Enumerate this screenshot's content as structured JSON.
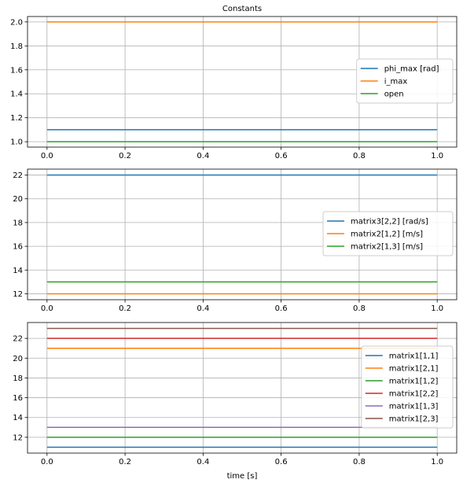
{
  "figure": {
    "title": "Constants",
    "xlabel": "time [s]"
  },
  "chart_data": [
    {
      "type": "line",
      "title": "Constants",
      "xlabel": "",
      "ylabel": "",
      "xlim": [
        -0.05,
        1.05
      ],
      "ylim": [
        0.955,
        2.045
      ],
      "xticks": [
        0.0,
        0.2,
        0.4,
        0.6,
        0.8,
        1.0
      ],
      "xtick_labels": [
        "0.0",
        "0.2",
        "0.4",
        "0.6",
        "0.8",
        "1.0"
      ],
      "yticks": [
        1.0,
        1.2,
        1.4,
        1.6,
        1.8,
        2.0
      ],
      "ytick_labels": [
        "1.0",
        "1.2",
        "1.4",
        "1.6",
        "1.8",
        "2.0"
      ],
      "grid": true,
      "legend_position": "center-right",
      "series": [
        {
          "name": "phi_max [rad]",
          "color": "#1f77b4",
          "x": [
            0.0,
            1.0
          ],
          "y": [
            1.1,
            1.1
          ]
        },
        {
          "name": "i_max",
          "color": "#ff7f0e",
          "x": [
            0.0,
            1.0
          ],
          "y": [
            2.0,
            2.0
          ]
        },
        {
          "name": "open",
          "color": "#2ca02c",
          "x": [
            0.0,
            1.0
          ],
          "y": [
            1.0,
            1.0
          ]
        }
      ]
    },
    {
      "type": "line",
      "title": "",
      "xlabel": "",
      "ylabel": "",
      "xlim": [
        -0.05,
        1.05
      ],
      "ylim": [
        11.5,
        22.5
      ],
      "xticks": [
        0.0,
        0.2,
        0.4,
        0.6,
        0.8,
        1.0
      ],
      "xtick_labels": [
        "0.0",
        "0.2",
        "0.4",
        "0.6",
        "0.8",
        "1.0"
      ],
      "yticks": [
        12,
        14,
        16,
        18,
        20,
        22
      ],
      "ytick_labels": [
        "12",
        "14",
        "16",
        "18",
        "20",
        "22"
      ],
      "grid": true,
      "legend_position": "center-right",
      "series": [
        {
          "name": "matrix3[2,2] [rad/s]",
          "color": "#1f77b4",
          "x": [
            0.0,
            1.0
          ],
          "y": [
            22,
            22
          ]
        },
        {
          "name": "matrix2[1,2] [m/s]",
          "color": "#ff7f0e",
          "x": [
            0.0,
            1.0
          ],
          "y": [
            12,
            12
          ]
        },
        {
          "name": "matrix2[1,3] [m/s]",
          "color": "#2ca02c",
          "x": [
            0.0,
            1.0
          ],
          "y": [
            13,
            13
          ]
        }
      ]
    },
    {
      "type": "line",
      "title": "",
      "xlabel": "time [s]",
      "ylabel": "",
      "xlim": [
        -0.05,
        1.05
      ],
      "ylim": [
        10.4,
        23.6
      ],
      "xticks": [
        0.0,
        0.2,
        0.4,
        0.6,
        0.8,
        1.0
      ],
      "xtick_labels": [
        "0.0",
        "0.2",
        "0.4",
        "0.6",
        "0.8",
        "1.0"
      ],
      "yticks": [
        12,
        14,
        16,
        18,
        20,
        22
      ],
      "ytick_labels": [
        "12",
        "14",
        "16",
        "18",
        "20",
        "22"
      ],
      "grid": true,
      "legend_position": "center-right",
      "series": [
        {
          "name": "matrix1[1,1]",
          "color": "#1f77b4",
          "x": [
            0.0,
            1.0
          ],
          "y": [
            11,
            11
          ]
        },
        {
          "name": "matrix1[2,1]",
          "color": "#ff7f0e",
          "x": [
            0.0,
            1.0
          ],
          "y": [
            21,
            21
          ]
        },
        {
          "name": "matrix1[1,2]",
          "color": "#2ca02c",
          "x": [
            0.0,
            1.0
          ],
          "y": [
            12,
            12
          ]
        },
        {
          "name": "matrix1[2,2]",
          "color": "#d62728",
          "x": [
            0.0,
            1.0
          ],
          "y": [
            22,
            22
          ]
        },
        {
          "name": "matrix1[1,3]",
          "color": "#9467bd",
          "x": [
            0.0,
            1.0
          ],
          "y": [
            13,
            13
          ]
        },
        {
          "name": "matrix1[2,3]",
          "color": "#8c564b",
          "x": [
            0.0,
            1.0
          ],
          "y": [
            23,
            23
          ]
        }
      ]
    }
  ]
}
